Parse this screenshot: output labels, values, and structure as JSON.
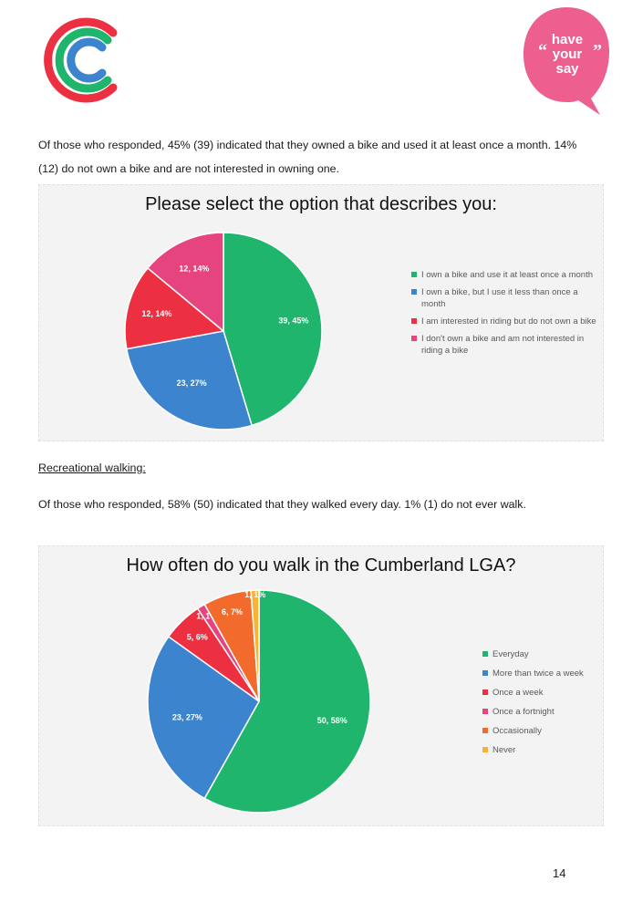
{
  "paragraphs": {
    "p1": "Of those who responded, 45% (39) indicated that they owned a bike and used it at least once a month. 14% (12) do not own a bike and are not interested in owning one.",
    "walking_heading": "Recreational walking:",
    "p2": "Of those who responded, 58% (50) indicated that they walked every day. 1% (1) do not ever walk."
  },
  "logo": {
    "have_your_say": [
      "have",
      "your",
      "say"
    ]
  },
  "colors": {
    "green": "#1fb56c",
    "blue": "#3d84cf",
    "red": "#ec2f41",
    "pink": "#e6447e",
    "orange": "#f36b2c",
    "yellow": "#f7b336"
  },
  "chart_data": [
    {
      "type": "pie",
      "title": "Please select the option that describes you:",
      "labels": [
        "I own a bike and use it at least once a month",
        "I own a bike, but I use it less than once a month",
        "I am interested in riding but do not own a bike",
        "I don't own a bike and am not interested in riding a bike"
      ],
      "values": [
        39,
        23,
        12,
        12
      ],
      "percents": [
        45,
        27,
        14,
        14
      ],
      "data_labels": [
        "39, 45%",
        "23, 27%",
        "12, 14%",
        "12, 14%"
      ],
      "colors": [
        "#1fb56c",
        "#3d84cf",
        "#ec2f41",
        "#e6447e"
      ],
      "legend_position": "right"
    },
    {
      "type": "pie",
      "title": "How often do you walk in the Cumberland LGA?",
      "labels": [
        "Everyday",
        "More than twice a week",
        "Once a week",
        "Once a fortnight",
        "Occasionally",
        "Never"
      ],
      "values": [
        50,
        23,
        5,
        1,
        6,
        1
      ],
      "percents": [
        58,
        27,
        6,
        1,
        7,
        1
      ],
      "data_labels": [
        "50, 58%",
        "23, 27%",
        "5, 6%",
        "1, 1%",
        "6, 7%",
        "1, 1%"
      ],
      "colors": [
        "#1fb56c",
        "#3d84cf",
        "#ec2f41",
        "#e6447e",
        "#f36b2c",
        "#f7b336"
      ],
      "legend_position": "right"
    }
  ],
  "page_number": "14"
}
